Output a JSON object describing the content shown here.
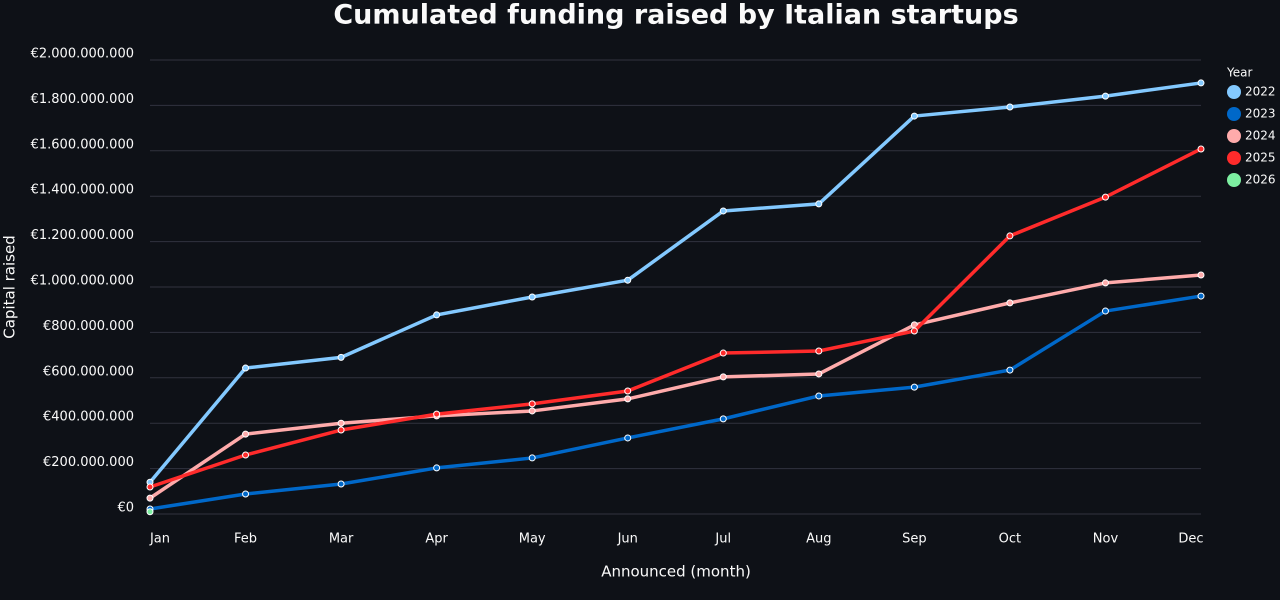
{
  "chart_data": {
    "type": "line",
    "title": "Cumulated funding raised by Italian startups",
    "x_label": "Announced (month)",
    "y_label": "Capital raised",
    "legend_title": "Year",
    "legend": "right",
    "grid": true,
    "categories": [
      "Jan",
      "Feb",
      "Mar",
      "Apr",
      "May",
      "Jun",
      "Jul",
      "Aug",
      "Sep",
      "Oct",
      "Nov",
      "Dec"
    ],
    "ylim": [
      0,
      2000000000
    ],
    "yticks": [
      {
        "value": 0,
        "label": "€0"
      },
      {
        "value": 200000000,
        "label": "€200.000.000"
      },
      {
        "value": 400000000,
        "label": "€400.000.000"
      },
      {
        "value": 600000000,
        "label": "€600.000.000"
      },
      {
        "value": 800000000,
        "label": "€800.000.000"
      },
      {
        "value": 1000000000,
        "label": "€1.000.000.000"
      },
      {
        "value": 1200000000,
        "label": "€1.200.000.000"
      },
      {
        "value": 1400000000,
        "label": "€1.400.000.000"
      },
      {
        "value": 1600000000,
        "label": "€1.600.000.000"
      },
      {
        "value": 1800000000,
        "label": "€1.800.000.000"
      },
      {
        "value": 2000000000,
        "label": "€2.000.000.000"
      }
    ],
    "series": [
      {
        "name": "2022",
        "color": "#83c9ff",
        "values": [
          140000000,
          643000000,
          690000000,
          877000000,
          956000000,
          1030000000,
          1335000000,
          1366000000,
          1753000000,
          1793000000,
          1841000000,
          1899000000
        ]
      },
      {
        "name": "2023",
        "color": "#0068c9",
        "values": [
          22000000,
          88000000,
          132000000,
          203000000,
          247000000,
          335000000,
          419000000,
          520000000,
          559000000,
          634000000,
          894000000,
          960000000
        ]
      },
      {
        "name": "2024",
        "color": "#ffabab",
        "values": [
          70000000,
          352000000,
          400000000,
          432000000,
          454000000,
          507000000,
          604000000,
          617000000,
          833000000,
          930000000,
          1018000000,
          1053000000
        ]
      },
      {
        "name": "2025",
        "color": "#ff2b2b",
        "values": [
          119000000,
          260000000,
          370000000,
          440000000,
          485000000,
          542000000,
          709000000,
          718000000,
          806000000,
          1225000000,
          1396000000,
          1608000000
        ]
      },
      {
        "name": "2026",
        "color": "#7defa1",
        "values": [
          10000000,
          null,
          null,
          null,
          null,
          null,
          null,
          null,
          null,
          null,
          null,
          null
        ]
      }
    ]
  }
}
